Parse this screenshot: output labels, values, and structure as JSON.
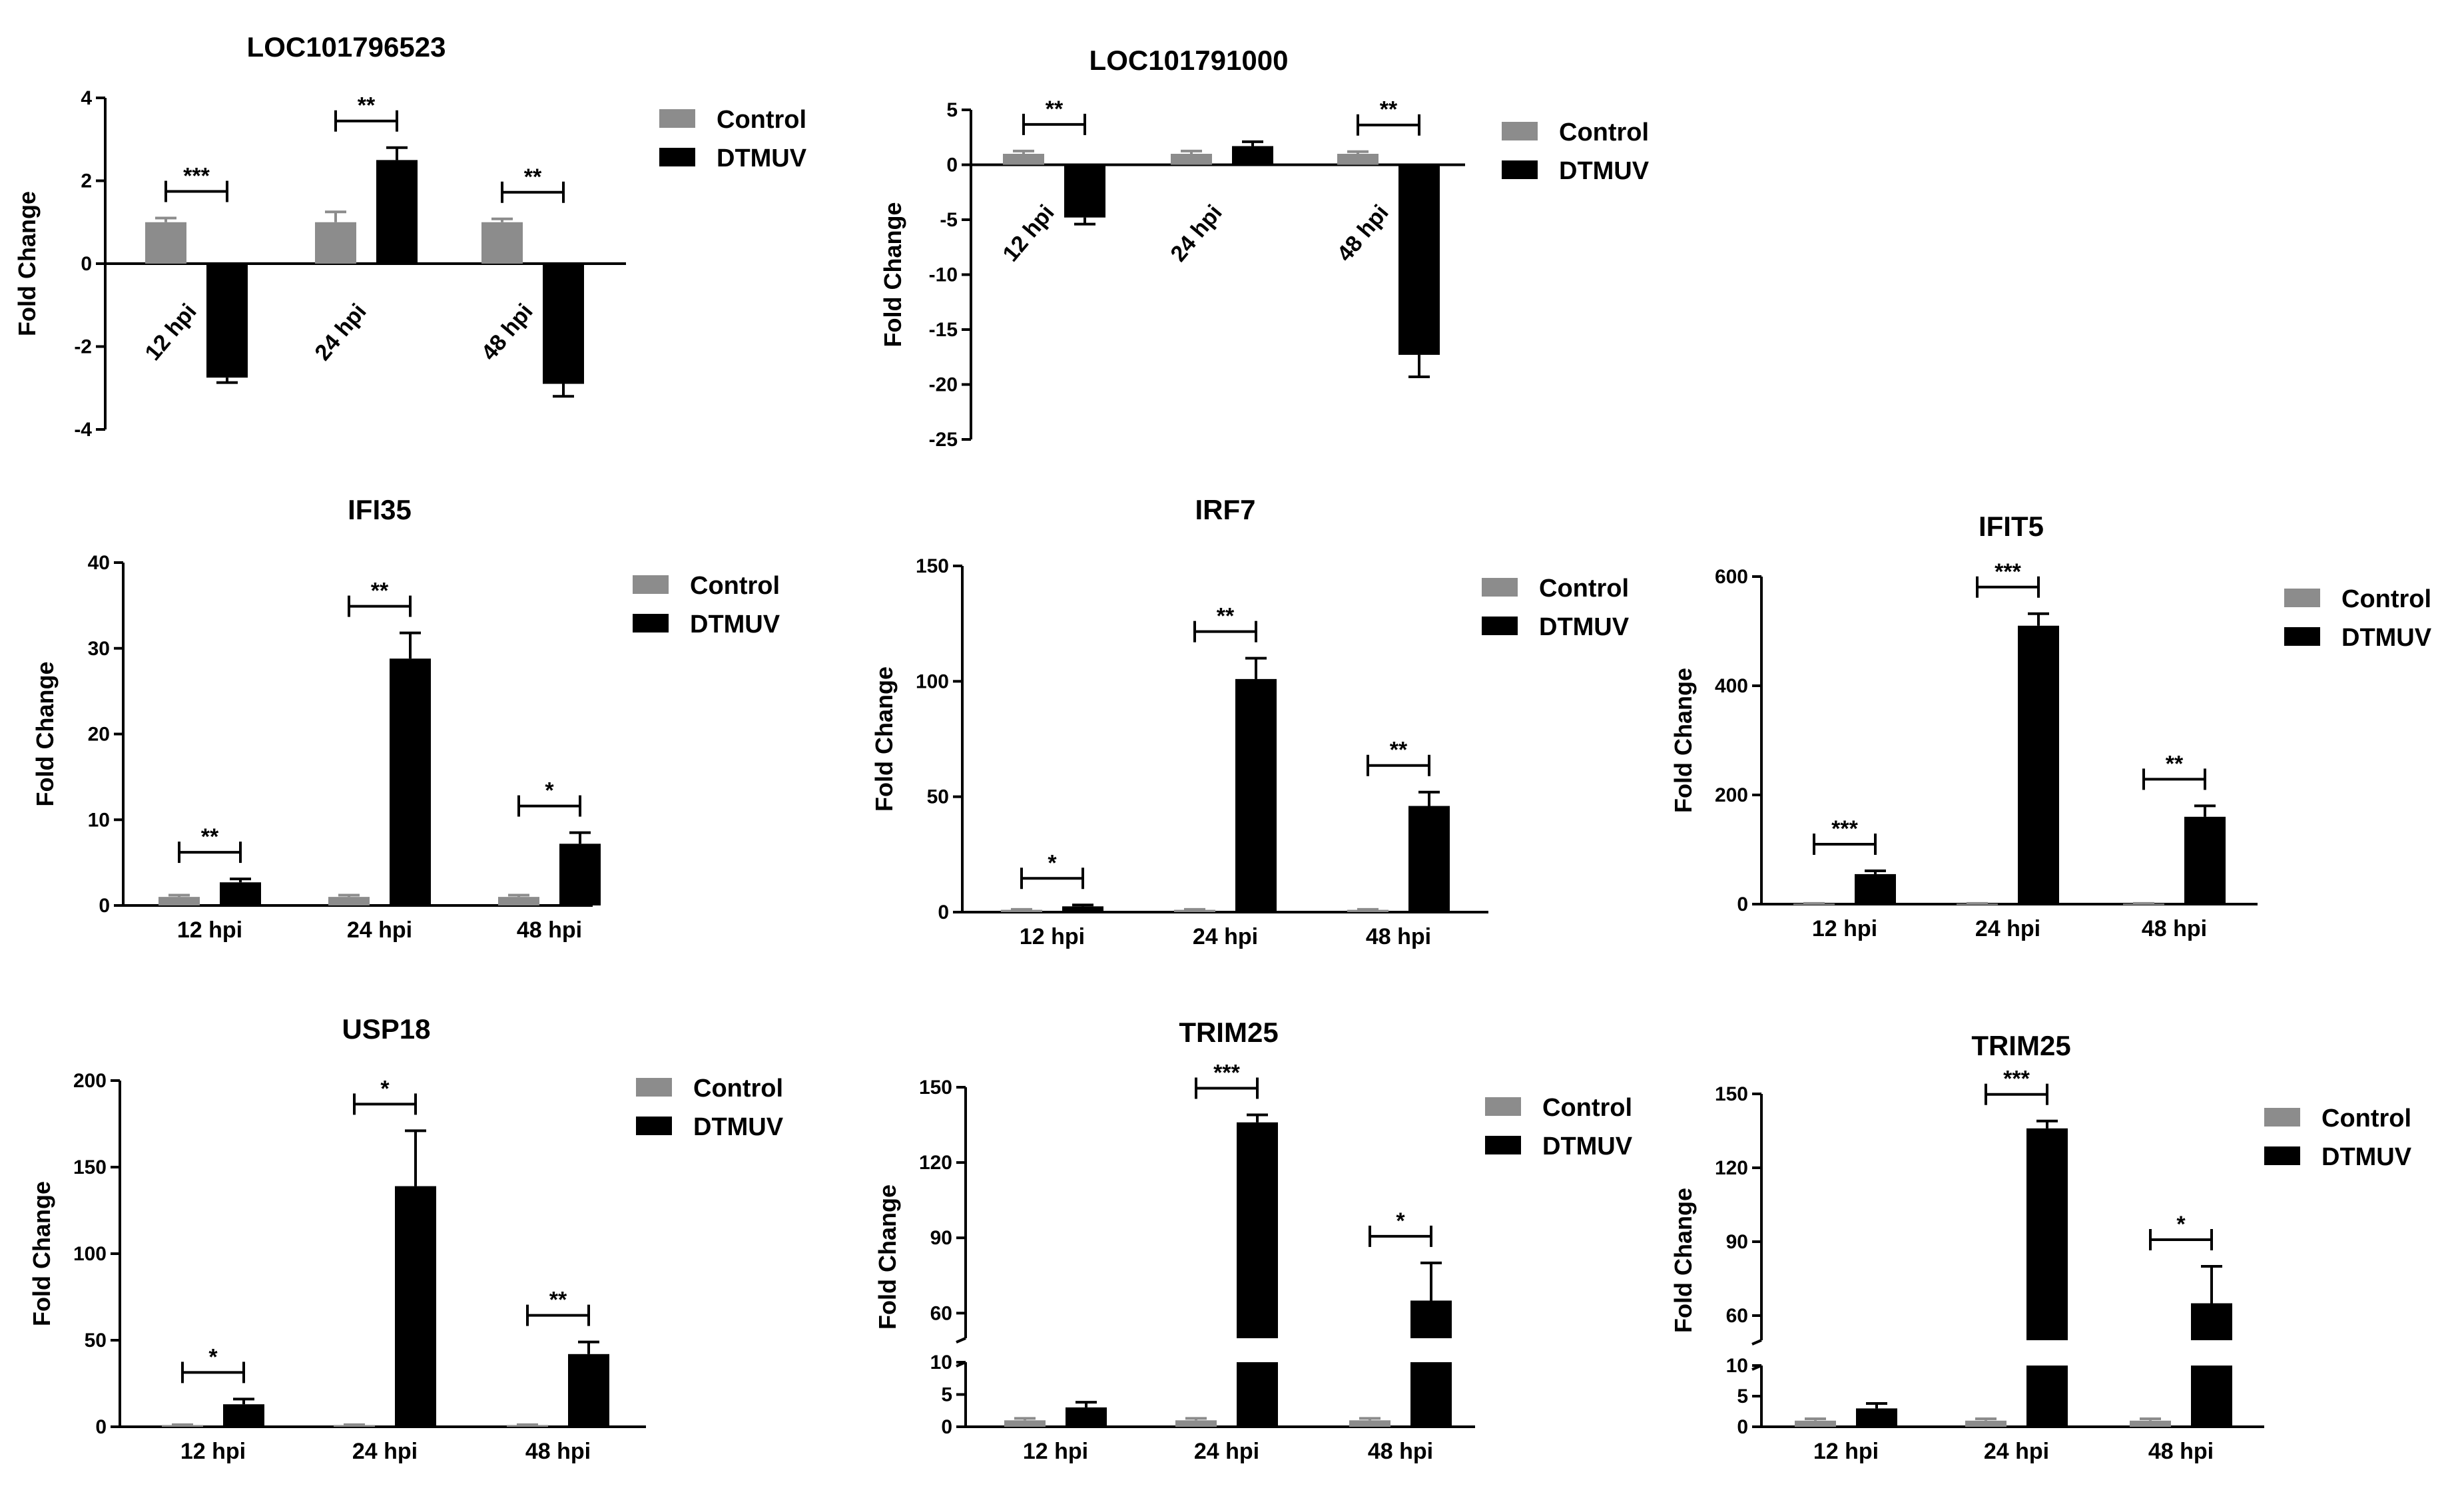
{
  "figure_title": "",
  "colors": {
    "control": "#8c8c8c",
    "dtmuv": "#000000",
    "axis": "#000000"
  },
  "chart_data": [
    {
      "type": "bar",
      "title": "LOC101796523",
      "categories": [
        "12 hpi",
        "24 hpi",
        "48 hpi"
      ],
      "category_label_style": "rotated-at-zero",
      "series": [
        {
          "name": "Control",
          "values": [
            1.0,
            1.0,
            1.0
          ],
          "errors": [
            0.1,
            0.25,
            0.08
          ]
        },
        {
          "name": "DTMUV",
          "values": [
            -2.75,
            2.5,
            -2.9
          ],
          "errors": [
            0.12,
            0.3,
            0.3
          ]
        }
      ],
      "significance": [
        "***",
        "**",
        "**"
      ],
      "xlabel": "",
      "ylabel": "Fold Change",
      "ylim": [
        -4,
        4
      ],
      "yticks": [
        -4,
        -2,
        0,
        2,
        4
      ],
      "legend": [
        "Control",
        "DTMUV"
      ],
      "legend_position": "top-right"
    },
    {
      "type": "bar",
      "title": "LOC101791000",
      "categories": [
        "12 hpi",
        "24 hpi",
        "48 hpi"
      ],
      "category_label_style": "rotated-at-zero",
      "series": [
        {
          "name": "Control",
          "values": [
            1.0,
            1.0,
            1.0
          ],
          "errors": [
            0.25,
            0.25,
            0.2
          ]
        },
        {
          "name": "DTMUV",
          "values": [
            -4.8,
            1.7,
            -17.3
          ],
          "errors": [
            0.6,
            0.4,
            2.0
          ]
        }
      ],
      "significance": [
        "**",
        "",
        "**"
      ],
      "xlabel": "",
      "ylabel": "Fold Change",
      "ylim": [
        -25,
        5
      ],
      "yticks": [
        -25,
        -20,
        -15,
        -10,
        -5,
        0,
        5
      ],
      "legend": [
        "Control",
        "DTMUV"
      ],
      "legend_position": "top-right"
    },
    {
      "type": "bar",
      "title": "IFI35",
      "categories": [
        "12 hpi",
        "24 hpi",
        "48 hpi"
      ],
      "series": [
        {
          "name": "Control",
          "values": [
            1.0,
            1.0,
            1.0
          ],
          "errors": [
            0.2,
            0.2,
            0.2
          ]
        },
        {
          "name": "DTMUV",
          "values": [
            2.7,
            28.8,
            7.2
          ],
          "errors": [
            0.4,
            3.0,
            1.3
          ]
        }
      ],
      "significance": [
        "**",
        "**",
        "*"
      ],
      "xlabel": "",
      "ylabel": "Fold Change",
      "ylim": [
        0,
        40
      ],
      "yticks": [
        0,
        10,
        20,
        30,
        40
      ],
      "legend": [
        "Control",
        "DTMUV"
      ],
      "legend_position": "top-right"
    },
    {
      "type": "bar",
      "title": "IRF7",
      "categories": [
        "12 hpi",
        "24 hpi",
        "48 hpi"
      ],
      "series": [
        {
          "name": "Control",
          "values": [
            1.0,
            1.0,
            1.0
          ],
          "errors": [
            0.2,
            0.2,
            0.2
          ]
        },
        {
          "name": "DTMUV",
          "values": [
            2.5,
            101,
            46
          ],
          "errors": [
            0.6,
            9,
            6
          ]
        }
      ],
      "significance": [
        "*",
        "**",
        "**"
      ],
      "xlabel": "",
      "ylabel": "Fold Change",
      "ylim": [
        0,
        150
      ],
      "yticks": [
        0,
        50,
        100,
        150
      ],
      "legend": [
        "Control",
        "DTMUV"
      ],
      "legend_position": "top-right"
    },
    {
      "type": "bar",
      "title": "IFIT5",
      "categories": [
        "12 hpi",
        "24 hpi",
        "48 hpi"
      ],
      "series": [
        {
          "name": "Control",
          "values": [
            1.0,
            1.0,
            1.0
          ],
          "errors": [
            0.3,
            0.3,
            0.3
          ]
        },
        {
          "name": "DTMUV",
          "values": [
            55,
            510,
            160
          ],
          "errors": [
            6,
            22,
            20
          ]
        }
      ],
      "significance": [
        "***",
        "***",
        "**"
      ],
      "xlabel": "",
      "ylabel": "Fold Change",
      "ylim": [
        0,
        600
      ],
      "yticks": [
        0,
        200,
        400,
        600
      ],
      "legend": [
        "Control",
        "DTMUV"
      ],
      "legend_position": "top-right"
    },
    {
      "type": "bar",
      "title": "USP18",
      "categories": [
        "12 hpi",
        "24 hpi",
        "48 hpi"
      ],
      "series": [
        {
          "name": "Control",
          "values": [
            1.0,
            1.0,
            1.0
          ],
          "errors": [
            0.2,
            0.2,
            0.2
          ]
        },
        {
          "name": "DTMUV",
          "values": [
            13,
            139,
            42
          ],
          "errors": [
            3,
            32,
            7
          ]
        }
      ],
      "significance": [
        "*",
        "*",
        "**"
      ],
      "xlabel": "",
      "ylabel": "Fold Change",
      "ylim": [
        0,
        200
      ],
      "yticks": [
        0,
        50,
        100,
        150,
        200
      ],
      "legend": [
        "Control",
        "DTMUV"
      ],
      "legend_position": "top-right"
    },
    {
      "type": "bar",
      "title": "TRIM25",
      "categories": [
        "12 hpi",
        "24 hpi",
        "48 hpi"
      ],
      "axis_break": [
        10,
        50
      ],
      "series": [
        {
          "name": "Control",
          "values": [
            1.0,
            1.0,
            1.0
          ],
          "errors": [
            0.3,
            0.3,
            0.3
          ]
        },
        {
          "name": "DTMUV",
          "values": [
            3,
            136,
            65
          ],
          "errors": [
            0.8,
            3,
            15
          ]
        }
      ],
      "significance": [
        "",
        "***",
        "*"
      ],
      "xlabel": "",
      "ylabel": "Fold Change",
      "ylim": [
        0,
        150
      ],
      "yticks_lower": [
        0,
        5,
        10
      ],
      "yticks_upper": [
        60,
        90,
        120,
        150
      ],
      "legend": [
        "Control",
        "DTMUV"
      ],
      "legend_position": "top-right"
    },
    {
      "type": "bar",
      "title": "TRIM25",
      "categories": [
        "12 hpi",
        "24 hpi",
        "48 hpi"
      ],
      "axis_break": [
        10,
        50
      ],
      "series": [
        {
          "name": "Control",
          "values": [
            1.0,
            1.0,
            1.0
          ],
          "errors": [
            0.3,
            0.3,
            0.3
          ]
        },
        {
          "name": "DTMUV",
          "values": [
            3,
            136,
            65
          ],
          "errors": [
            0.8,
            3,
            15
          ]
        }
      ],
      "significance": [
        "",
        "***",
        "*"
      ],
      "xlabel": "",
      "ylabel": "Fold Change",
      "ylim": [
        0,
        150
      ],
      "yticks_lower": [
        0,
        5,
        10
      ],
      "yticks_upper": [
        60,
        90,
        120,
        150
      ],
      "legend": [
        "Control",
        "DTMUV"
      ],
      "legend_position": "top-right"
    }
  ]
}
